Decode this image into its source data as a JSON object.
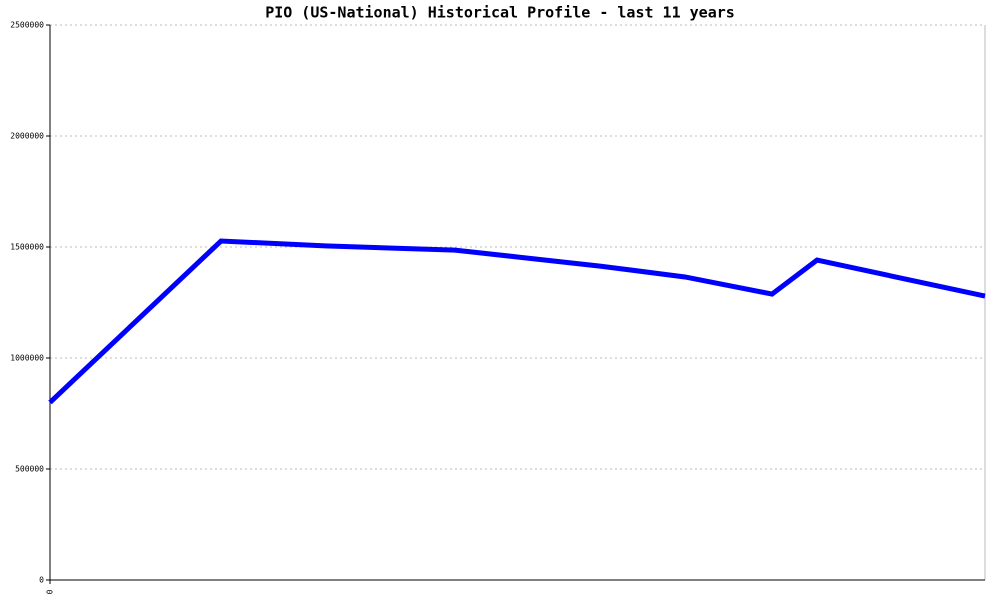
{
  "chart_data": {
    "type": "line",
    "title": "PIO (US-National) Historical Profile - last 11 years",
    "x": [
      0,
      171,
      275,
      405,
      550,
      635,
      722,
      767,
      935
    ],
    "values": [
      800000,
      1527000,
      1505000,
      1486000,
      1414000,
      1365000,
      1288000,
      1441000,
      1279000
    ],
    "color": "#0000ff",
    "xlim": [
      0,
      935
    ],
    "xticks": [
      0
    ],
    "ylim": [
      0,
      2500000
    ],
    "yticks": [
      0,
      500000,
      1000000,
      1500000,
      2000000,
      2500000
    ],
    "grid": true
  }
}
